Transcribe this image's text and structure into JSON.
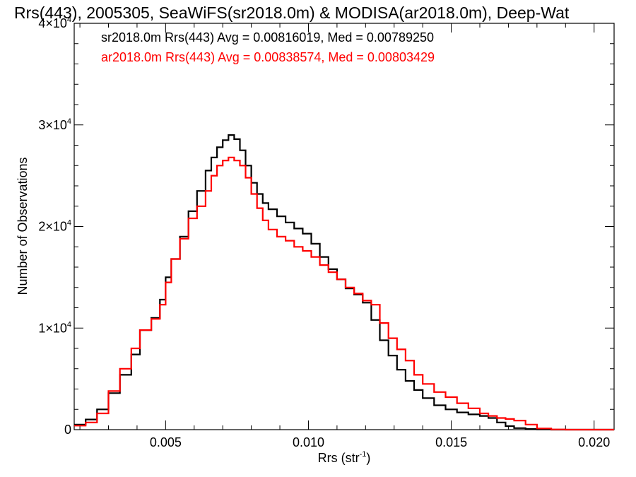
{
  "chart_data": {
    "type": "line",
    "title": "Rrs(443), 2005305, SeaWiFS(sr2018.0m) & MODISA(ar2018.0m), Deep-Wat",
    "xlabel": "Rrs (str",
    "xlabel_sup": "-1",
    "xlabel_end": ")",
    "ylabel": "Number of Observations",
    "xlim": [
      0.0018,
      0.0207
    ],
    "ylim": [
      0,
      40000
    ],
    "x_ticks": [
      {
        "value": 0.005,
        "label": "0.005"
      },
      {
        "value": 0.01,
        "label": "0.010"
      },
      {
        "value": 0.015,
        "label": "0.015"
      },
      {
        "value": 0.02,
        "label": "0.020"
      }
    ],
    "y_ticks": [
      {
        "value": 0,
        "label": "0",
        "sup": ""
      },
      {
        "value": 10000,
        "label": "1×10",
        "sup": "4"
      },
      {
        "value": 20000,
        "label": "2×10",
        "sup": "4"
      },
      {
        "value": 30000,
        "label": "3×10",
        "sup": "4"
      },
      {
        "value": 40000,
        "label": "4×10",
        "sup": "4"
      }
    ],
    "legend_position": "top-left",
    "series": [
      {
        "name": "sr2018.0m Rrs(443) Avg = 0.00816019, Med = 0.00789250",
        "color": "#000000",
        "x": [
          0.0018,
          0.0022,
          0.0026,
          0.003,
          0.0034,
          0.0038,
          0.0041,
          0.0045,
          0.0048,
          0.005,
          0.0052,
          0.0055,
          0.0058,
          0.0061,
          0.0064,
          0.0066,
          0.0068,
          0.007,
          0.0072,
          0.0074,
          0.0076,
          0.0078,
          0.008,
          0.0082,
          0.0084,
          0.0086,
          0.0089,
          0.0092,
          0.0095,
          0.0098,
          0.0101,
          0.0104,
          0.0107,
          0.011,
          0.0113,
          0.0116,
          0.0119,
          0.0122,
          0.0125,
          0.0128,
          0.0131,
          0.0134,
          0.0137,
          0.014,
          0.0144,
          0.0148,
          0.0152,
          0.0156,
          0.016,
          0.0163,
          0.0166,
          0.0169,
          0.0172,
          0.0176,
          0.018,
          0.0185,
          0.019,
          0.0207
        ],
        "values": [
          500,
          1000,
          2000,
          3600,
          5400,
          7400,
          9800,
          11000,
          12800,
          15000,
          16800,
          19000,
          21500,
          23500,
          25500,
          26800,
          27800,
          28500,
          29000,
          28600,
          27500,
          26000,
          24300,
          23200,
          22300,
          21700,
          21000,
          20400,
          19800,
          19300,
          18300,
          17000,
          15800,
          14800,
          13900,
          13300,
          12500,
          10800,
          8800,
          7300,
          5900,
          4800,
          3900,
          3100,
          2400,
          2000,
          1700,
          1500,
          1350,
          1150,
          700,
          350,
          150,
          60,
          20,
          0,
          0,
          0
        ]
      },
      {
        "name": "ar2018.0m Rrs(443) Avg = 0.00838574, Med = 0.00803429",
        "color": "#ff0000",
        "x": [
          0.0018,
          0.0022,
          0.0026,
          0.003,
          0.0034,
          0.0038,
          0.0041,
          0.0045,
          0.0048,
          0.005,
          0.0052,
          0.0055,
          0.0058,
          0.0061,
          0.0064,
          0.0066,
          0.0068,
          0.007,
          0.0072,
          0.0074,
          0.0076,
          0.0078,
          0.008,
          0.0082,
          0.0084,
          0.0086,
          0.0089,
          0.0092,
          0.0095,
          0.0098,
          0.0101,
          0.0104,
          0.0107,
          0.011,
          0.0113,
          0.0116,
          0.0119,
          0.0122,
          0.0125,
          0.0128,
          0.0131,
          0.0134,
          0.0137,
          0.014,
          0.0144,
          0.0148,
          0.0152,
          0.0156,
          0.016,
          0.0163,
          0.0166,
          0.0169,
          0.0172,
          0.0176,
          0.018,
          0.0185,
          0.019,
          0.0207
        ],
        "values": [
          400,
          700,
          1600,
          3800,
          6000,
          8000,
          9800,
          10900,
          12300,
          14500,
          16800,
          18800,
          20800,
          22000,
          23500,
          25000,
          26000,
          26500,
          26800,
          26500,
          26000,
          24800,
          23200,
          21800,
          20600,
          19700,
          19000,
          18600,
          18000,
          17600,
          17000,
          16200,
          15500,
          14800,
          14000,
          13400,
          12700,
          12300,
          10500,
          9000,
          7900,
          6800,
          5400,
          4500,
          3700,
          3200,
          2600,
          2100,
          1600,
          1350,
          1150,
          1050,
          900,
          500,
          120,
          20,
          0,
          0
        ]
      }
    ]
  }
}
